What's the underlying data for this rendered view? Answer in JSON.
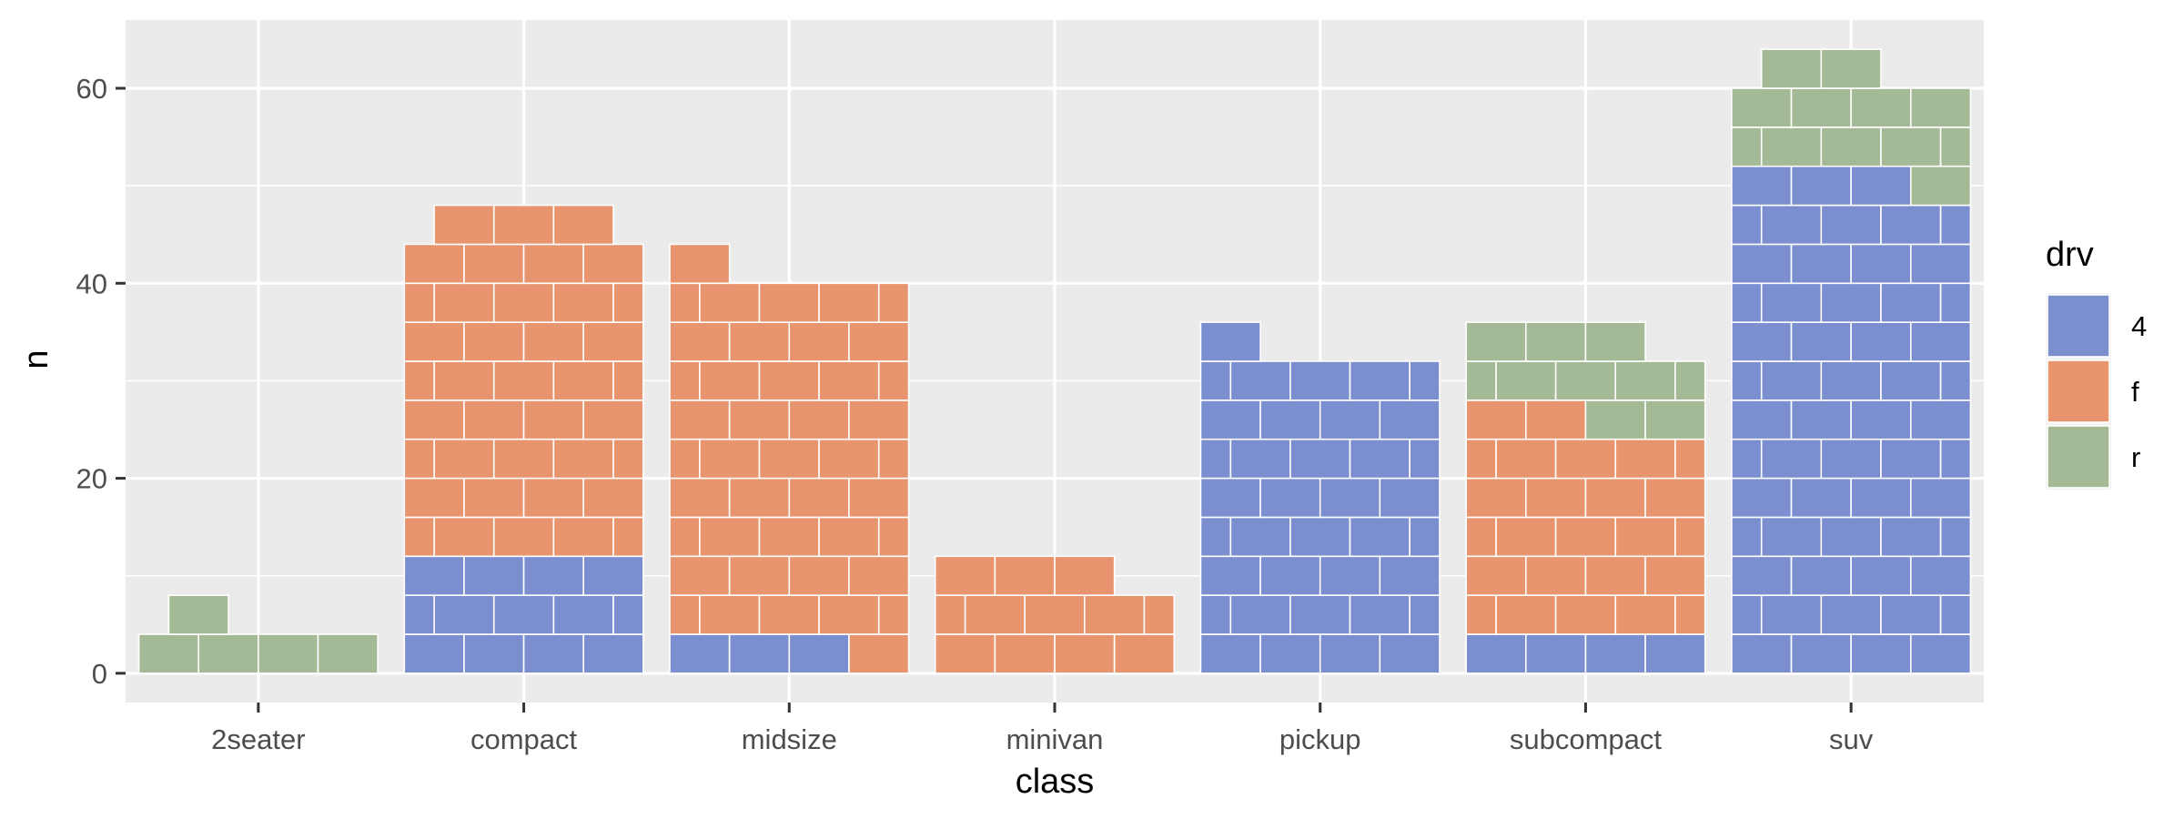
{
  "chart_data": {
    "type": "bar",
    "subtype": "brick-stacked",
    "xlabel": "class",
    "ylabel": "n",
    "categories": [
      "2seater",
      "compact",
      "midsize",
      "minivan",
      "pickup",
      "subcompact",
      "suv"
    ],
    "series": [
      {
        "name": "4",
        "values": [
          0,
          12,
          3,
          0,
          33,
          4,
          51
        ]
      },
      {
        "name": "f",
        "values": [
          0,
          35,
          38,
          11,
          0,
          22,
          0
        ]
      },
      {
        "name": "r",
        "values": [
          5,
          0,
          0,
          0,
          0,
          9,
          11
        ]
      }
    ],
    "yticks": [
      0,
      20,
      40,
      60
    ],
    "ylim": [
      -3,
      67
    ],
    "grid": true,
    "legend": {
      "title": "drv",
      "position": "right",
      "entries": [
        "4",
        "f",
        "r"
      ]
    },
    "colors": {
      "4": "#7b8fd0",
      "f": "#e8956f",
      "r": "#a4b995",
      "panel": "#ebebeb",
      "grid": "#ffffff"
    }
  }
}
